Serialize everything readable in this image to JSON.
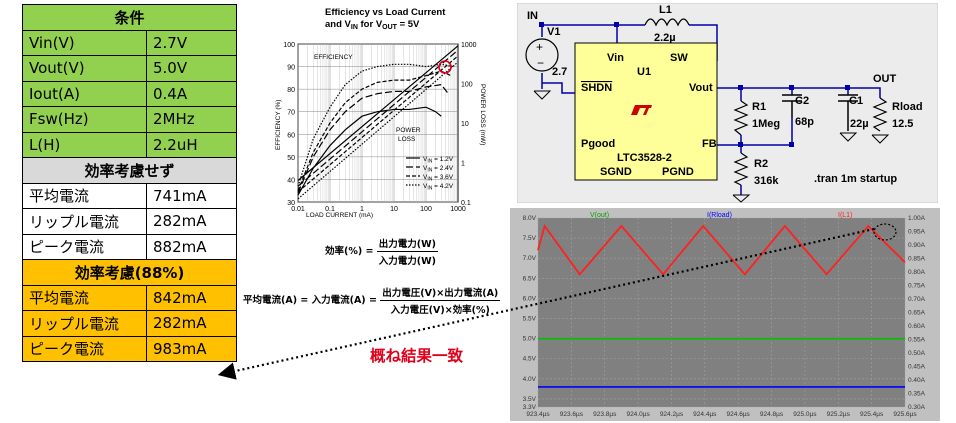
{
  "conditions_table": {
    "header": "条件",
    "rows": [
      {
        "label": "Vin(V)",
        "value": "2.7V"
      },
      {
        "label": "Vout(V)",
        "value": "5.0V"
      },
      {
        "label": "Iout(A)",
        "value": "0.4A"
      },
      {
        "label": "Fsw(Hz)",
        "value": "2MHz"
      },
      {
        "label": "L(H)",
        "value": "2.2uH"
      }
    ],
    "no_efficiency_header": "効率考慮せず",
    "no_efficiency_rows": [
      {
        "label": "平均電流",
        "value": "741mA"
      },
      {
        "label": "リップル電流",
        "value": "282mA"
      },
      {
        "label": "ピーク電流",
        "value": "882mA"
      }
    ],
    "efficiency_header": "効率考慮(88%)",
    "efficiency_rows": [
      {
        "label": "平均電流",
        "value": "842mA"
      },
      {
        "label": "リップル電流",
        "value": "282mA"
      },
      {
        "label": "ピーク電流",
        "value": "983mA"
      }
    ]
  },
  "efficiency_chart": {
    "title_line1": "Efficiency vs Load Current",
    "title_line2_pre": "and V",
    "title_line2_sub": "IN",
    "title_line2_post": " for V",
    "title_line2_sub2": "OUT",
    "title_line2_end": " = 5V",
    "xlabel": "LOAD CURRENT (mA)",
    "ylabel": "EFFICIENCY (%)",
    "y2label": "POWER LOSS (mW)",
    "efficiency_label": "EFFICIENCY",
    "power_loss_label_1": "POWER",
    "power_loss_label_2": "LOSS",
    "x_ticks": [
      "0.01",
      "0.1",
      "1",
      "10",
      "100",
      "1000"
    ],
    "y_ticks": [
      "30",
      "40",
      "50",
      "60",
      "70",
      "80",
      "90",
      "100"
    ],
    "y2_ticks": [
      "0.1",
      "1",
      "10",
      "100",
      "1000"
    ],
    "legend": [
      {
        "pre": "V",
        "sub": "IN",
        "post": " = 1.2V"
      },
      {
        "pre": "V",
        "sub": "IN",
        "post": " = 2.4V"
      },
      {
        "pre": "V",
        "sub": "IN",
        "post": " = 3.6V"
      },
      {
        "pre": "V",
        "sub": "IN",
        "post": " = 4.2V"
      }
    ],
    "highlight_color": "#e0001b"
  },
  "chart_data": [
    {
      "type": "line",
      "title": "Efficiency vs Load Current and VIN for VOUT = 5V",
      "xlabel": "LOAD CURRENT (mA)",
      "ylabel": "EFFICIENCY (%)",
      "xscale": "log",
      "xlim": [
        0.01,
        1000
      ],
      "ylim": [
        30,
        100
      ],
      "y2scale": "log",
      "y2lim": [
        0.1,
        1000
      ],
      "series": [
        {
          "name": "VIN = 1.2V",
          "axis": "efficiency",
          "x": [
            0.01,
            0.03,
            0.1,
            0.3,
            1,
            3,
            10,
            30,
            100,
            200,
            300
          ],
          "y": [
            33,
            45,
            55,
            62,
            68,
            70,
            71,
            71,
            72,
            70,
            68
          ]
        },
        {
          "name": "VIN = 2.4V",
          "axis": "efficiency",
          "x": [
            0.01,
            0.03,
            0.1,
            0.3,
            1,
            3,
            10,
            30,
            100,
            300,
            500
          ],
          "y": [
            34,
            50,
            62,
            70,
            76,
            78,
            79,
            79,
            81,
            82,
            78
          ]
        },
        {
          "name": "VIN = 3.6V",
          "axis": "efficiency",
          "x": [
            0.01,
            0.03,
            0.1,
            0.3,
            1,
            3,
            10,
            30,
            100,
            300,
            600
          ],
          "y": [
            35,
            52,
            65,
            74,
            80,
            83,
            84,
            84,
            86,
            88,
            86
          ]
        },
        {
          "name": "VIN = 4.2V",
          "axis": "efficiency",
          "x": [
            0.01,
            0.03,
            0.1,
            0.3,
            1,
            3,
            10,
            30,
            100,
            300,
            700
          ],
          "y": [
            37,
            58,
            72,
            82,
            88,
            90,
            91,
            91,
            90,
            91,
            90
          ]
        },
        {
          "name": "VIN = 1.2V",
          "axis": "power_loss",
          "x": [
            0.01,
            1000
          ],
          "y": [
            0.35,
            900
          ]
        },
        {
          "name": "VIN = 2.4V",
          "axis": "power_loss",
          "x": [
            0.01,
            1000
          ],
          "y": [
            0.25,
            700
          ]
        },
        {
          "name": "VIN = 3.6V",
          "axis": "power_loss",
          "x": [
            0.01,
            1000
          ],
          "y": [
            0.18,
            500
          ]
        },
        {
          "name": "VIN = 4.2V",
          "axis": "power_loss",
          "x": [
            0.01,
            1000
          ],
          "y": [
            0.12,
            350
          ]
        }
      ]
    },
    {
      "type": "line",
      "title": "",
      "xlabel": "",
      "ylabel": "",
      "xlim": [
        923.4,
        925.6
      ],
      "ylim": [
        3.3,
        8.0
      ],
      "y2lim": [
        0.3,
        1.0
      ],
      "x_ticks": [
        "923.4µs",
        "923.6µs",
        "923.8µs",
        "924.0µs",
        "924.2µs",
        "924.4µs",
        "924.6µs",
        "924.8µs",
        "925.0µs",
        "925.2µs",
        "925.4µs",
        "925.6µs"
      ],
      "y_ticks": [
        "3.3V",
        "3.5V",
        "4.0V",
        "4.5V",
        "5.0V",
        "5.5V",
        "6.0V",
        "6.5V",
        "7.0V",
        "7.5V",
        "8.0V"
      ],
      "y2_ticks": [
        "0.30A",
        "0.35A",
        "0.40A",
        "0.45A",
        "0.50A",
        "0.55A",
        "0.60A",
        "0.65A",
        "0.70A",
        "0.75A",
        "0.80A",
        "0.85A",
        "0.90A",
        "0.95A",
        "1.00A"
      ],
      "series": [
        {
          "name": "I(L1)",
          "color": "#ff2020",
          "x": [
            923.4,
            923.44,
            923.65,
            923.9,
            924.15,
            924.39,
            924.64,
            924.88,
            925.13,
            925.38,
            925.6
          ],
          "y": [
            7.2,
            7.8,
            6.6,
            7.8,
            6.6,
            7.8,
            6.6,
            7.8,
            6.6,
            7.8,
            6.9
          ]
        },
        {
          "name": "V(out)",
          "color": "#00c000",
          "x": [
            923.4,
            925.6
          ],
          "y": [
            5.0,
            5.0
          ]
        },
        {
          "name": "I(Rload)",
          "color": "#0000ff",
          "x": [
            923.4,
            925.6
          ],
          "y": [
            3.8,
            3.8
          ]
        }
      ]
    }
  ],
  "formulas": {
    "efficiency_lhs": "効率(%) =",
    "efficiency_num": "出力電力(W)",
    "efficiency_den": "入力電力(W)",
    "avg_lhs": "平均電流(A) = 入力電流(A) =",
    "avg_num": "出力電圧(V)×出力電流(A)",
    "avg_den": "入力電圧(V)×効率(%)"
  },
  "match_label": "概ね結果一致",
  "schematic": {
    "in_label": "IN",
    "v1_label": "V1",
    "v1_value": "2.7",
    "l1_label": "L1",
    "l1_value": "2.2µ",
    "u1_label": "U1",
    "pin_vin": "Vin",
    "pin_sw": "SW",
    "pin_shdn": "SHDN",
    "pin_vout": "Vout",
    "pin_pgood": "Pgood",
    "pin_fb": "FB",
    "pin_sgnd": "SGND",
    "pin_pgnd": "PGND",
    "part_name": "LTC3528-2",
    "r1_label": "R1",
    "r1_value": "1Meg",
    "c2_label": "C2",
    "c2_value": "68p",
    "c1_label": "C1",
    "c1_value": "22µ",
    "rload_label": "Rload",
    "rload_value": "12.5",
    "out_label": "OUT",
    "r2_label": "R2",
    "r2_value": "316k",
    "directive": ".tran 1m startup"
  },
  "waveform": {
    "trace_vout_label": "V(out)",
    "trace_irload_label": "I(Rload)",
    "trace_il1_label": "I(L1)",
    "colors": {
      "il1": "#ff2020",
      "vout": "#00c000",
      "irload": "#0000ff",
      "bg": "#808080"
    }
  }
}
